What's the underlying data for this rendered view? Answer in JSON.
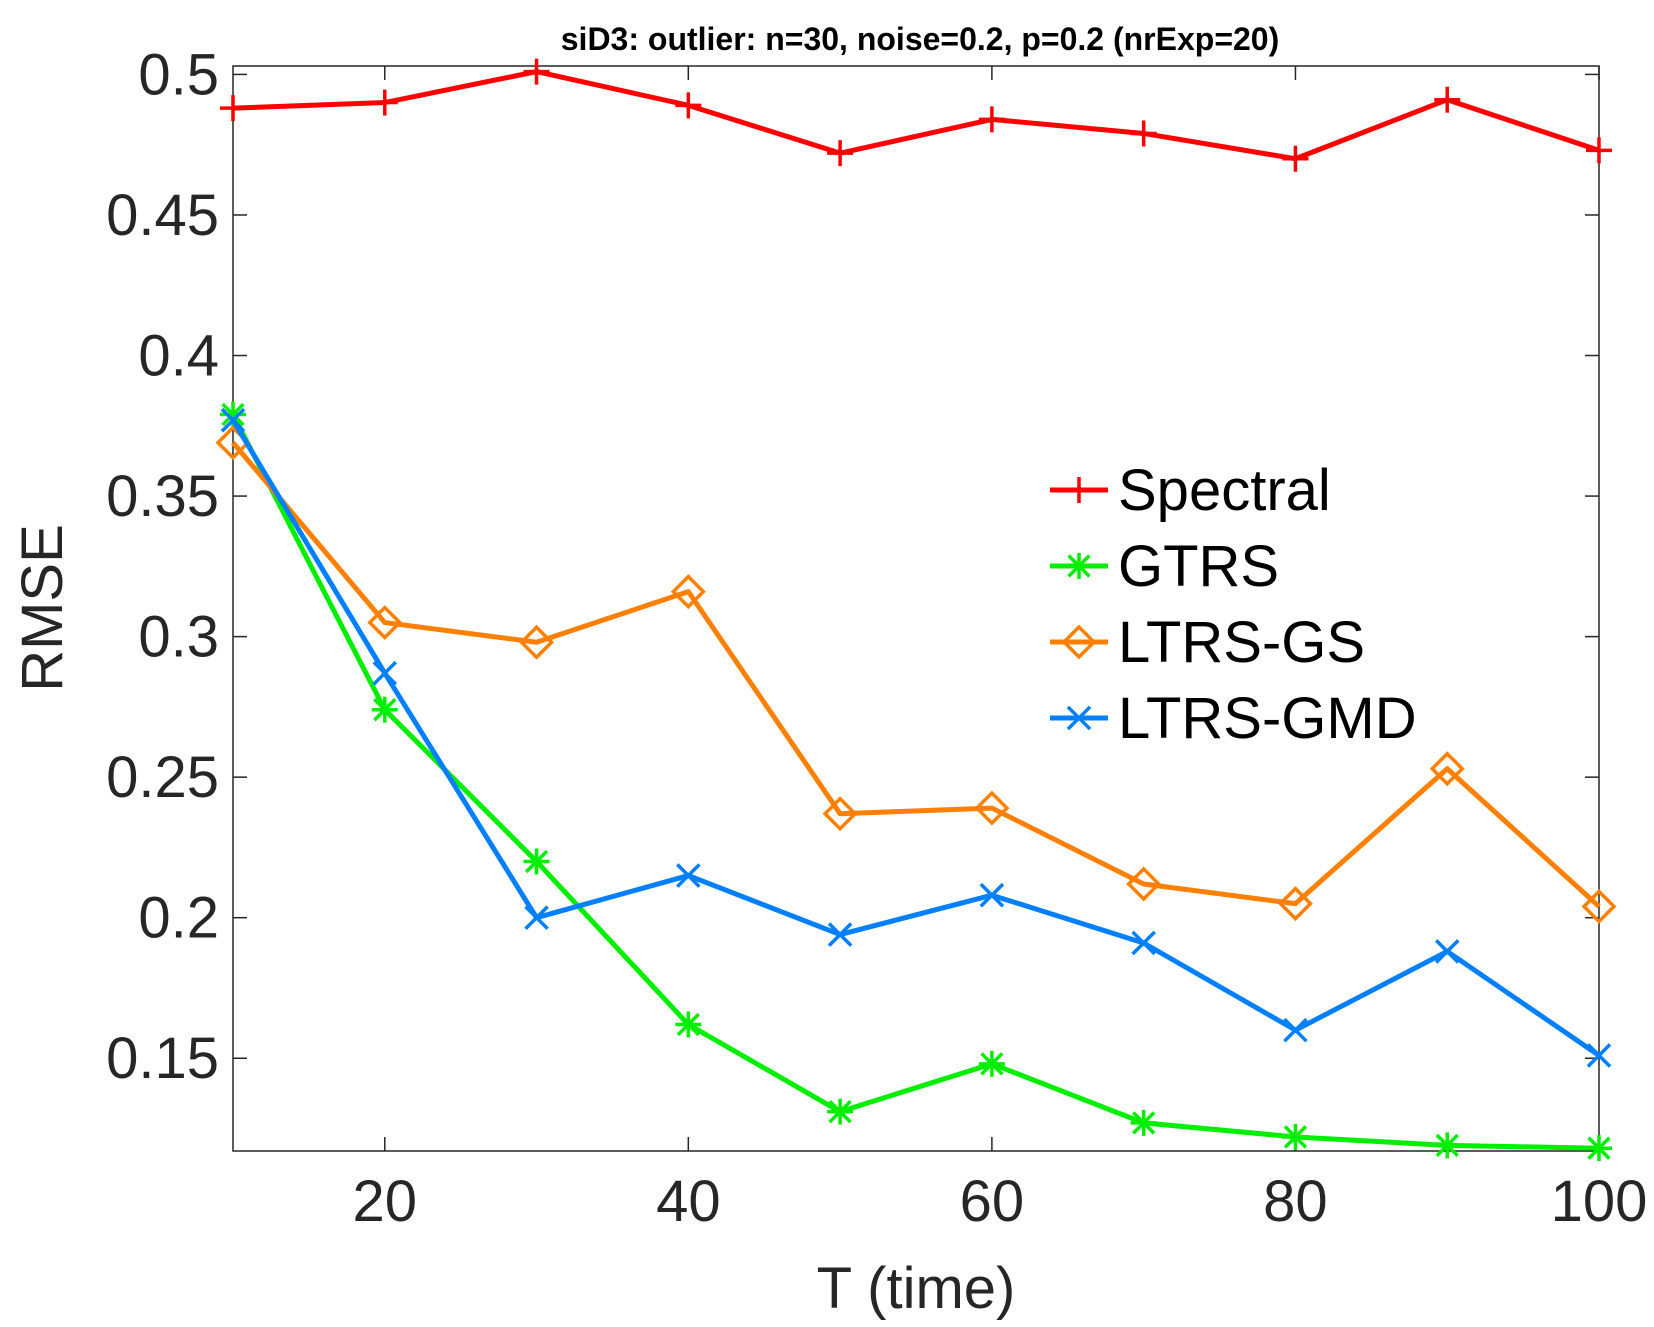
{
  "chart_data": {
    "type": "line",
    "title": "siD3: outlier: n=30, noise=0.2, p=0.2 (nrExp=20)",
    "xlabel": "T (time)",
    "ylabel": "RMSE",
    "xlim": [
      10,
      100
    ],
    "ylim": [
      0.117,
      0.503
    ],
    "x_ticks": [
      20,
      40,
      60,
      80,
      100
    ],
    "x_tick_labels": [
      "20",
      "40",
      "60",
      "80",
      "100"
    ],
    "y_ticks": [
      0.15,
      0.2,
      0.25,
      0.3,
      0.35,
      0.4,
      0.45,
      0.5
    ],
    "y_tick_labels": [
      "0.15",
      "0.2",
      "0.25",
      "0.3",
      "0.35",
      "0.4",
      "0.45",
      "0.5"
    ],
    "grid": false,
    "legend_position": "center-right",
    "x": [
      10,
      20,
      30,
      40,
      50,
      60,
      70,
      80,
      90,
      100
    ],
    "series": [
      {
        "name": "Spectral",
        "color": "#ff0000",
        "marker": "plus",
        "values": [
          0.488,
          0.49,
          0.501,
          0.489,
          0.472,
          0.484,
          0.479,
          0.47,
          0.491,
          0.473
        ]
      },
      {
        "name": "GTRS",
        "color": "#00ee00",
        "marker": "asterisk",
        "values": [
          0.379,
          0.274,
          0.22,
          0.162,
          0.131,
          0.148,
          0.127,
          0.122,
          0.119,
          0.118
        ]
      },
      {
        "name": "LTRS-GS",
        "color": "#ff8000",
        "marker": "diamond",
        "values": [
          0.369,
          0.305,
          0.298,
          0.316,
          0.237,
          0.239,
          0.212,
          0.205,
          0.253,
          0.204
        ]
      },
      {
        "name": "LTRS-GMD",
        "color": "#0080ff",
        "marker": "x",
        "values": [
          0.377,
          0.287,
          0.2,
          0.215,
          0.194,
          0.208,
          0.191,
          0.16,
          0.188,
          0.151
        ]
      }
    ]
  }
}
